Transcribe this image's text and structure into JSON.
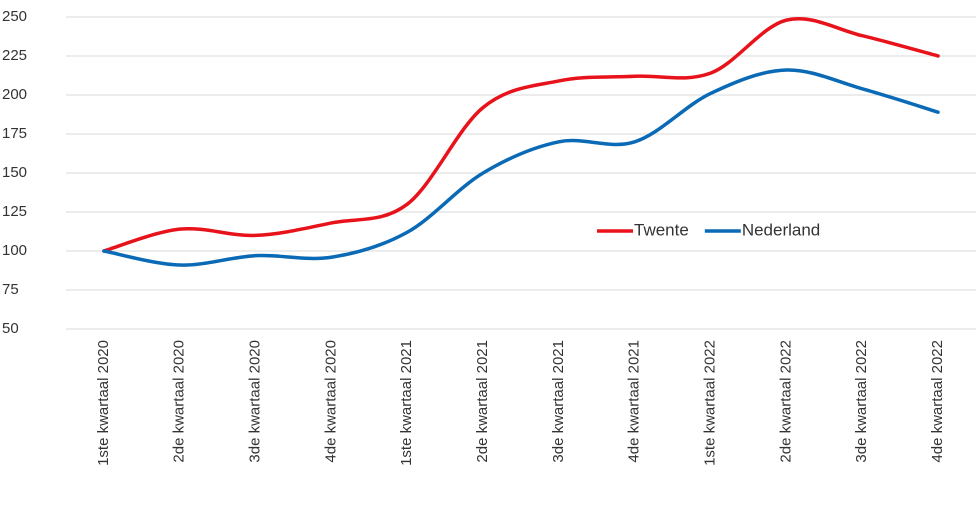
{
  "chart_data": {
    "type": "line",
    "categories": [
      "1ste kwartaal 2020",
      "2de kwartaal 2020",
      "3de kwartaal 2020",
      "4de kwartaal 2020",
      "1ste kwartaal 2021",
      "2de kwartaal 2021",
      "3de kwartaal 2021",
      "4de kwartaal 2021",
      "1ste kwartaal 2022",
      "2de kwartaal 2022",
      "3de kwartaal 2022",
      "4de kwartaal 2022"
    ],
    "series": [
      {
        "name": "Twente",
        "color": "#e8121a",
        "values": [
          100,
          114,
          110,
          118,
          130,
          192,
          209,
          212,
          214,
          248,
          238,
          225
        ]
      },
      {
        "name": "Nederland",
        "color": "#0a6ab6",
        "values": [
          100,
          91,
          97,
          96,
          112,
          150,
          170,
          170,
          201,
          216,
          204,
          189
        ]
      }
    ],
    "ylim": [
      50,
      250
    ],
    "yticks": [
      50,
      75,
      100,
      125,
      150,
      175,
      200,
      225,
      250
    ],
    "grid": true,
    "smooth": true
  }
}
